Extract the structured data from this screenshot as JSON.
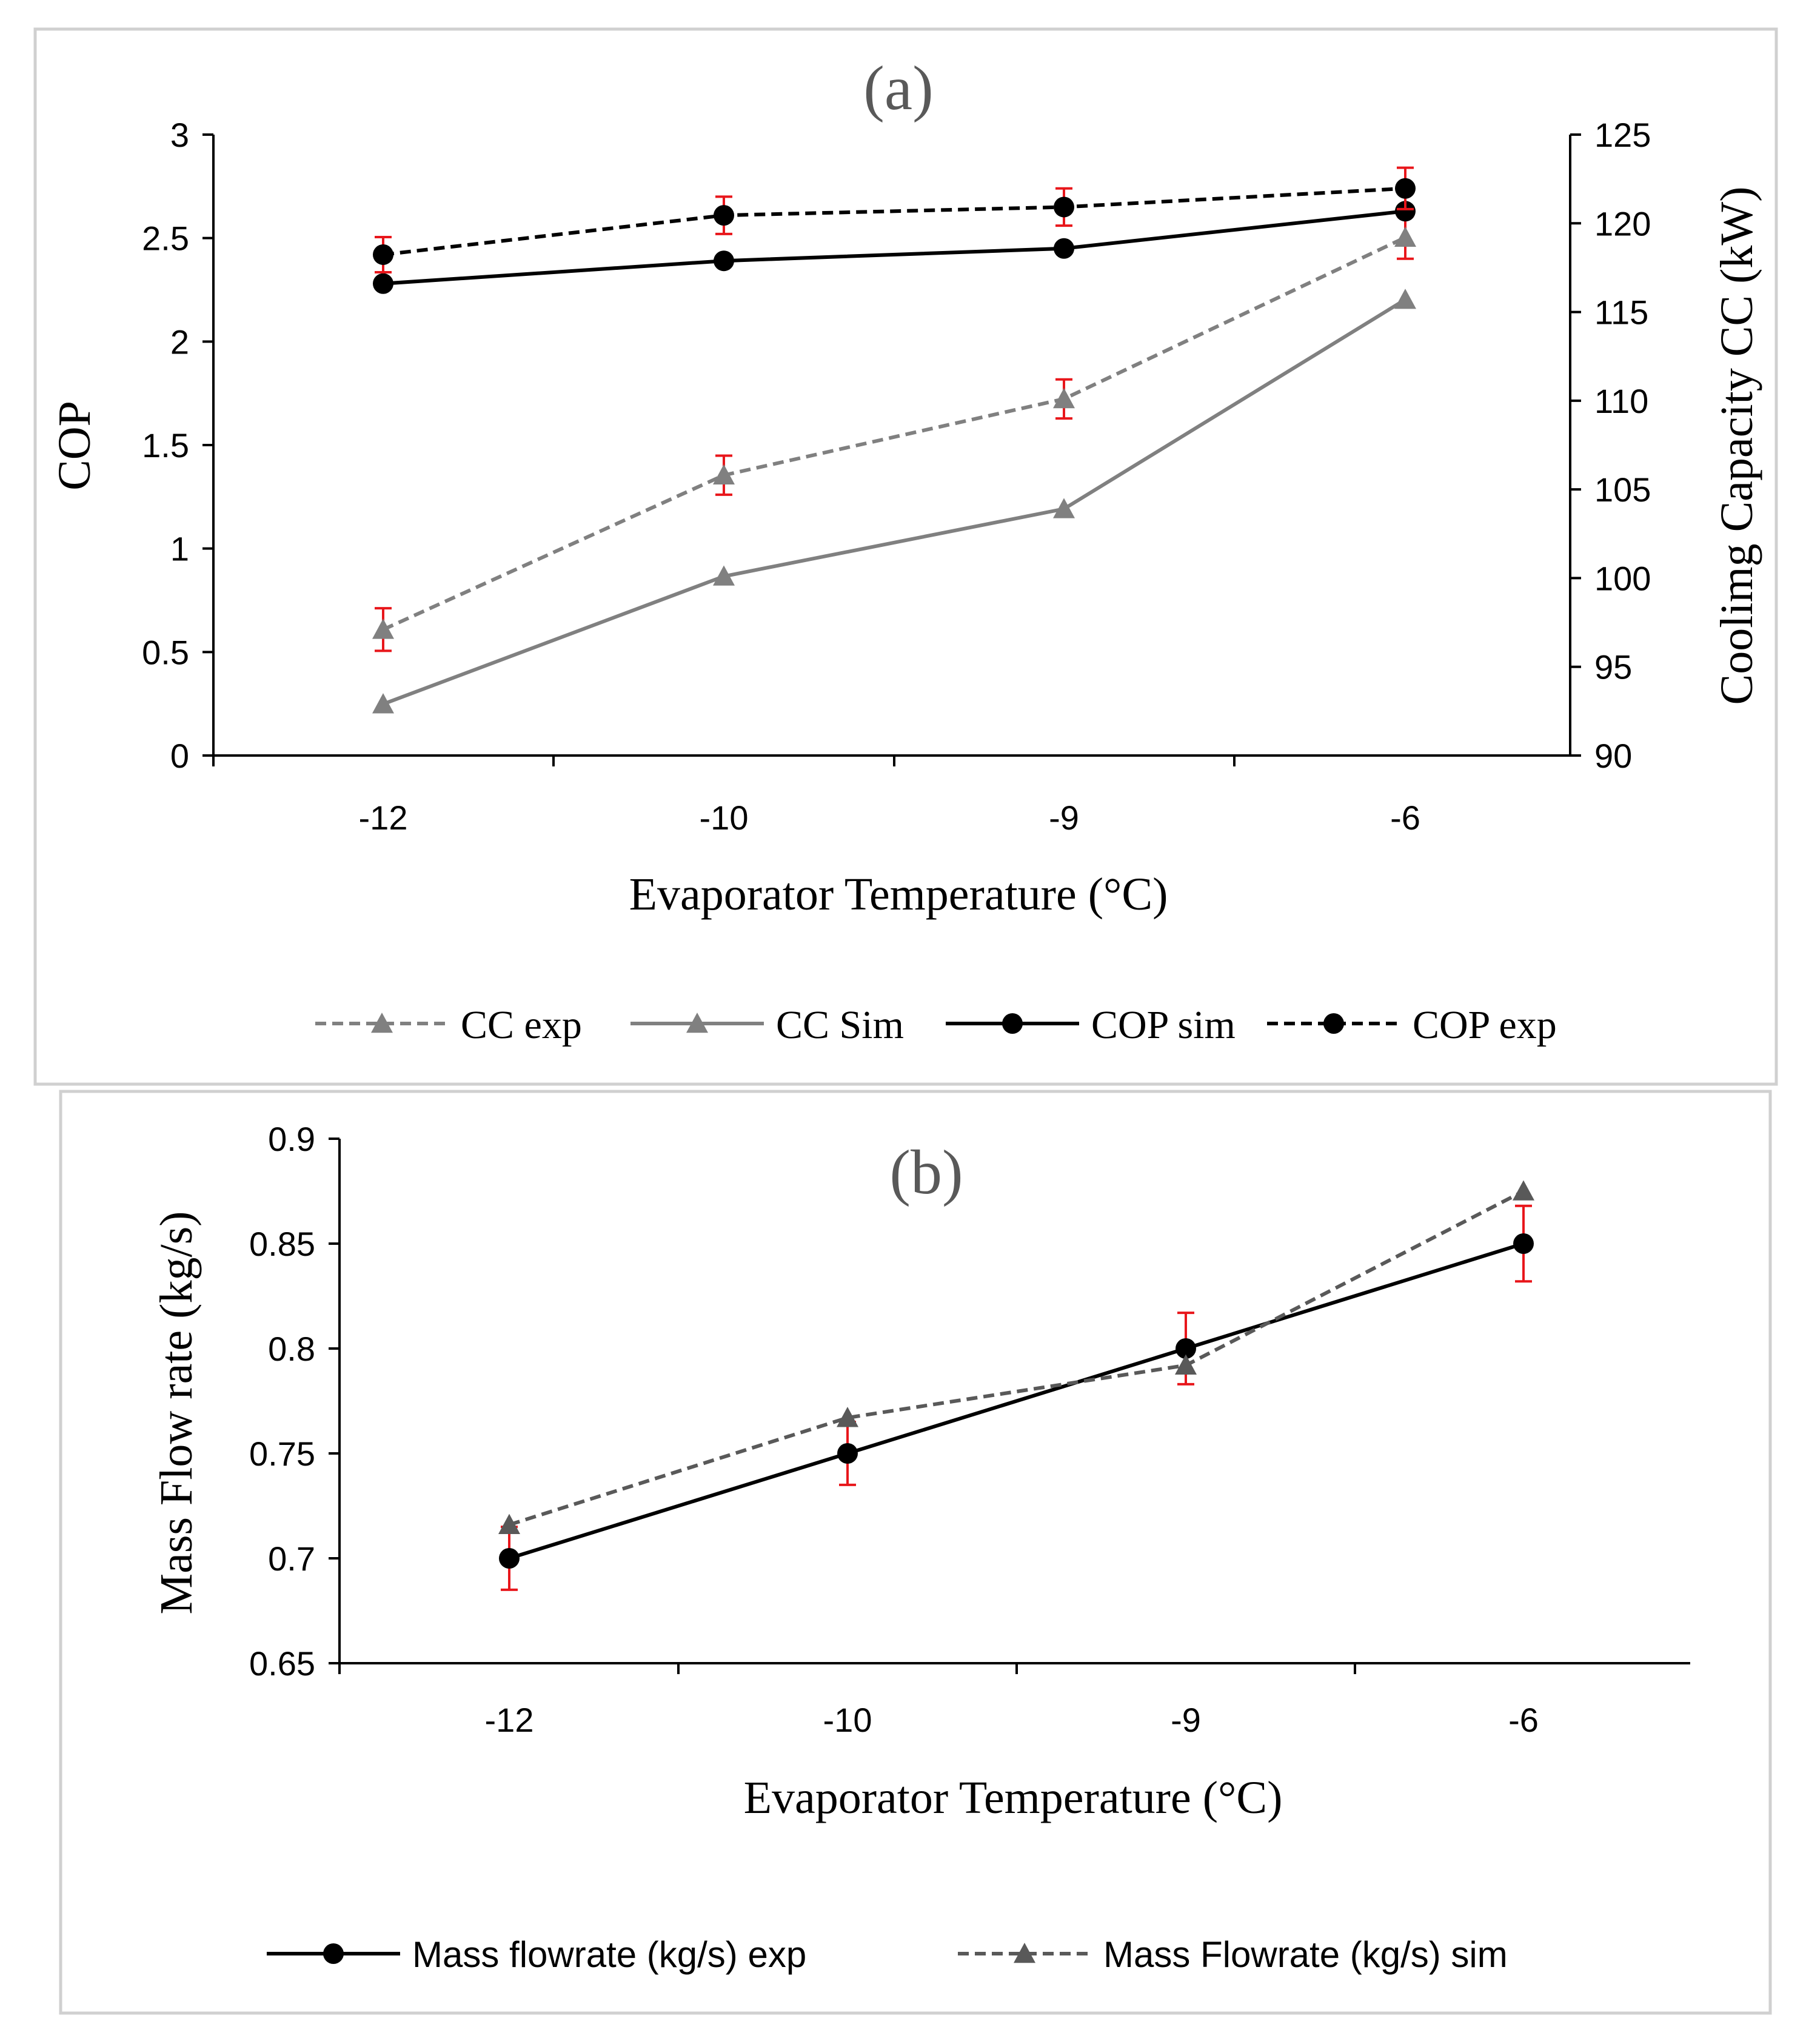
{
  "colors": {
    "black": "#000000",
    "gray": "#808080",
    "error": "#e8161b",
    "frame": "#d0d0d0",
    "panel_label": "#595959"
  },
  "chart_data": [
    {
      "type": "line",
      "panel_label": "(a)",
      "categories": [
        "-12",
        "-10",
        "-9",
        "-6"
      ],
      "xlabel": "Evaporator Temperature (°C)",
      "ylabel": "COP",
      "ylabel_right": "Coolimg Capacity CC (kW)",
      "ylim": [
        0,
        3
      ],
      "ylim_right": [
        90,
        125
      ],
      "yticks": [
        "0",
        "0.5",
        "1",
        "1.5",
        "2",
        "2.5",
        "3"
      ],
      "yticks_right": [
        "90",
        "95",
        "100",
        "105",
        "110",
        "115",
        "120",
        "125"
      ],
      "series": [
        {
          "name": "CC exp",
          "axis": "right",
          "marker": "triangle",
          "dash": true,
          "color": "#808080",
          "values": [
            97.1,
            105.8,
            110.1,
            119.2
          ],
          "error": [
            1.2,
            1.1,
            1.1,
            1.2
          ]
        },
        {
          "name": "CC Sim",
          "axis": "right",
          "marker": "triangle",
          "dash": false,
          "color": "#808080",
          "values": [
            92.9,
            100.1,
            103.9,
            115.7
          ],
          "error": null
        },
        {
          "name": "COP sim",
          "axis": "left",
          "marker": "circle",
          "dash": false,
          "color": "#000000",
          "values": [
            2.28,
            2.39,
            2.45,
            2.63
          ],
          "error": null
        },
        {
          "name": "COP exp",
          "axis": "left",
          "marker": "circle",
          "dash": true,
          "color": "#000000",
          "values": [
            2.42,
            2.61,
            2.65,
            2.74
          ],
          "error": [
            0.085,
            0.09,
            0.09,
            0.1
          ]
        }
      ]
    },
    {
      "type": "line",
      "panel_label": "(b)",
      "categories": [
        "-12",
        "-10",
        "-9",
        "-6"
      ],
      "xlabel": "Evaporator Temperature (°C)",
      "ylabel": "Mass Flow rate (kg/s)",
      "ylim": [
        0.65,
        0.9
      ],
      "yticks": [
        "0.65",
        "0.7",
        "0.75",
        "0.8",
        "0.85",
        "0.9"
      ],
      "series": [
        {
          "name": "Mass flowrate (kg/s) exp",
          "marker": "circle",
          "dash": false,
          "color": "#000000",
          "values": [
            0.7,
            0.75,
            0.8,
            0.85
          ],
          "error": [
            0.015,
            0.015,
            0.017,
            0.018
          ]
        },
        {
          "name": "Mass Flowrate (kg/s) sim",
          "marker": "triangle",
          "dash": true,
          "color": "#595959",
          "values": [
            0.716,
            0.767,
            0.792,
            0.875
          ],
          "error": null
        }
      ]
    }
  ]
}
